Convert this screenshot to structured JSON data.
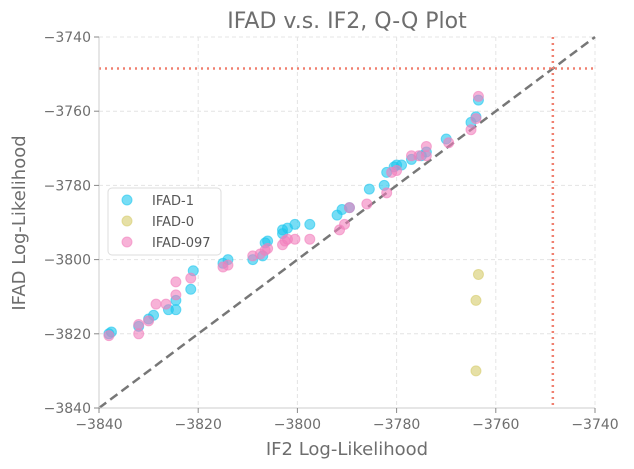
{
  "chart_data": {
    "type": "scatter",
    "title": "IFAD v.s. IF2, Q-Q Plot",
    "xlabel": "IF2 Log-Likelihood",
    "ylabel": "IFAD Log-Likelihood",
    "xlim": [
      -3840,
      -3740
    ],
    "ylim": [
      -3840,
      -3740
    ],
    "xticks": [
      -3840,
      -3820,
      -3800,
      -3780,
      -3760,
      -3740
    ],
    "yticks": [
      -3840,
      -3820,
      -3800,
      -3780,
      -3760,
      -3740
    ],
    "xtick_labels": [
      "−3840",
      "−3820",
      "−3800",
      "−3780",
      "−3760",
      "−3740"
    ],
    "ytick_labels": [
      "−3840",
      "−3820",
      "−3800",
      "−3780",
      "−3760",
      "−3740"
    ],
    "grid": true,
    "legend_position": "center-left",
    "reference_line": {
      "from": [
        -3840,
        -3840
      ],
      "to": [
        -3740,
        -3740
      ],
      "color": "#777777",
      "style": "dashed"
    },
    "hline": {
      "y": -3748.5,
      "color": "#f08070",
      "style": "dotted"
    },
    "vline": {
      "x": -3748.5,
      "color": "#f08070",
      "style": "dotted"
    },
    "series": [
      {
        "name": "IFAD-1",
        "color": "#1cc7ef",
        "points": [
          [
            -3838,
            -3820
          ],
          [
            -3837.5,
            -3819.5
          ],
          [
            -3832,
            -3818
          ],
          [
            -3830,
            -3816
          ],
          [
            -3829,
            -3815
          ],
          [
            -3826,
            -3813.5
          ],
          [
            -3824.5,
            -3813.5
          ],
          [
            -3824.5,
            -3811
          ],
          [
            -3821.5,
            -3808
          ],
          [
            -3821,
            -3803
          ],
          [
            -3815,
            -3801
          ],
          [
            -3814,
            -3800
          ],
          [
            -3809,
            -3800
          ],
          [
            -3807,
            -3799
          ],
          [
            -3806.5,
            -3795.5
          ],
          [
            -3806,
            -3795
          ],
          [
            -3803,
            -3793
          ],
          [
            -3803,
            -3792
          ],
          [
            -3802,
            -3791.5
          ],
          [
            -3800.5,
            -3790.5
          ],
          [
            -3797.5,
            -3790.5
          ],
          [
            -3792,
            -3788
          ],
          [
            -3791,
            -3786.5
          ],
          [
            -3789.5,
            -3786
          ],
          [
            -3785.5,
            -3781
          ],
          [
            -3782.5,
            -3780
          ],
          [
            -3782,
            -3776.5
          ],
          [
            -3780.5,
            -3775
          ],
          [
            -3780,
            -3774.5
          ],
          [
            -3779,
            -3774.5
          ],
          [
            -3777,
            -3773
          ],
          [
            -3775,
            -3772
          ],
          [
            -3774,
            -3771
          ],
          [
            -3770,
            -3767.5
          ],
          [
            -3765,
            -3763
          ],
          [
            -3764,
            -3761.5
          ],
          [
            -3763.5,
            -3757
          ]
        ]
      },
      {
        "name": "IFAD-0",
        "color": "#d6cc6a",
        "points": [
          [
            -3763.5,
            -3804
          ],
          [
            -3764,
            -3811
          ],
          [
            -3764,
            -3830
          ]
        ]
      },
      {
        "name": "IFAD-097",
        "color": "#f27ebd",
        "points": [
          [
            -3838,
            -3820.5
          ],
          [
            -3832,
            -3820
          ],
          [
            -3832,
            -3817.5
          ],
          [
            -3830,
            -3816.5
          ],
          [
            -3828.5,
            -3812
          ],
          [
            -3826.5,
            -3812
          ],
          [
            -3824.5,
            -3809.5
          ],
          [
            -3824.5,
            -3806
          ],
          [
            -3821.5,
            -3805
          ],
          [
            -3815,
            -3802
          ],
          [
            -3814,
            -3801.5
          ],
          [
            -3809,
            -3799
          ],
          [
            -3807.5,
            -3798.5
          ],
          [
            -3806.5,
            -3797.5
          ],
          [
            -3806,
            -3797
          ],
          [
            -3803,
            -3796
          ],
          [
            -3802.5,
            -3795
          ],
          [
            -3802,
            -3794.5
          ],
          [
            -3800.5,
            -3794.5
          ],
          [
            -3797.5,
            -3794.5
          ],
          [
            -3791.5,
            -3792
          ],
          [
            -3790.5,
            -3790.5
          ],
          [
            -3789.5,
            -3786
          ],
          [
            -3786,
            -3785
          ],
          [
            -3782,
            -3782
          ],
          [
            -3781,
            -3776.5
          ],
          [
            -3780,
            -3776
          ],
          [
            -3777,
            -3772
          ],
          [
            -3775.5,
            -3772
          ],
          [
            -3774,
            -3772
          ],
          [
            -3774,
            -3769.5
          ],
          [
            -3769.5,
            -3768.5
          ],
          [
            -3765,
            -3765
          ],
          [
            -3764,
            -3762
          ],
          [
            -3763.5,
            -3756
          ]
        ]
      }
    ]
  }
}
